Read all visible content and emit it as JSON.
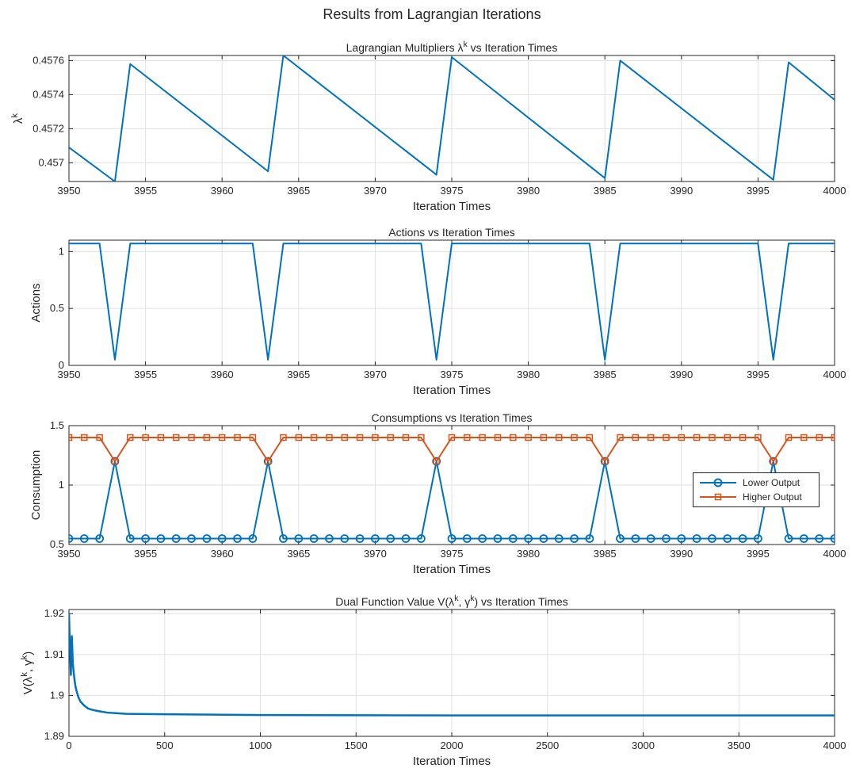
{
  "figure": {
    "title": "Results from Lagrangian Iterations"
  },
  "colors": {
    "series1": "#0072BD",
    "series2": "#D95319",
    "grid": "#E1E1E1",
    "axis": "#262626"
  },
  "chart_data": [
    {
      "type": "line",
      "title": "Lagrangian Multipliers λᵏ vs Iteration Times",
      "xlabel": "Iteration Times",
      "ylabel": "λᵏ",
      "xlim": [
        3950,
        4000
      ],
      "ylim": [
        0.45689,
        0.45763
      ],
      "xticks": [
        3950,
        3955,
        3960,
        3965,
        3970,
        3975,
        3980,
        3985,
        3990,
        3995,
        4000
      ],
      "xtick_labels": [
        "3950",
        "3955",
        "3960",
        "3965",
        "3970",
        "3975",
        "3980",
        "3985",
        "3990",
        "3995",
        "4000"
      ],
      "yticks": [
        0.457,
        0.4572,
        0.4574,
        0.4576
      ],
      "ytick_labels": [
        "0.457",
        "0.4572",
        "0.4574",
        "0.4576"
      ],
      "grid": true,
      "series": [
        {
          "x": [
            3950,
            3953,
            3954,
            3963,
            3964,
            3974,
            3975,
            3985,
            3986,
            3996,
            3997,
            4000
          ],
          "y": [
            0.45709,
            0.45689,
            0.45758,
            0.45695,
            0.45763,
            0.45693,
            0.45762,
            0.45691,
            0.4576,
            0.4569,
            0.45759,
            0.45737
          ]
        }
      ]
    },
    {
      "type": "line",
      "title": "Actions vs Iteration Times",
      "xlabel": "Iteration Times",
      "ylabel": "Actions",
      "xlim": [
        3950,
        4000
      ],
      "ylim": [
        0,
        1.1
      ],
      "xticks": [
        3950,
        3955,
        3960,
        3965,
        3970,
        3975,
        3980,
        3985,
        3990,
        3995,
        4000
      ],
      "xtick_labels": [
        "3950",
        "3955",
        "3960",
        "3965",
        "3970",
        "3975",
        "3980",
        "3985",
        "3990",
        "3995",
        "4000"
      ],
      "yticks": [
        0,
        0.5,
        1
      ],
      "ytick_labels": [
        "0",
        "0.5",
        "1"
      ],
      "grid": true,
      "series": [
        {
          "x": [
            3950,
            3952,
            3953,
            3954,
            3962,
            3963,
            3964,
            3973,
            3974,
            3975,
            3984,
            3985,
            3986,
            3995,
            3996,
            3997,
            4000
          ],
          "y": [
            1.07,
            1.07,
            0.05,
            1.07,
            1.07,
            0.05,
            1.07,
            1.07,
            0.05,
            1.07,
            1.07,
            0.05,
            1.07,
            1.07,
            0.05,
            1.07,
            1.07
          ]
        }
      ]
    },
    {
      "type": "line",
      "title": "Consumptions vs Iteration Times",
      "xlabel": "Iteration Times",
      "ylabel": "Consumption",
      "xlim": [
        3950,
        4000
      ],
      "ylim": [
        0.5,
        1.5
      ],
      "xticks": [
        3950,
        3955,
        3960,
        3965,
        3970,
        3975,
        3980,
        3985,
        3990,
        3995,
        4000
      ],
      "xtick_labels": [
        "3950",
        "3955",
        "3960",
        "3965",
        "3970",
        "3975",
        "3980",
        "3985",
        "3990",
        "3995",
        "4000"
      ],
      "yticks": [
        0.5,
        1,
        1.5
      ],
      "ytick_labels": [
        "0.5",
        "1",
        "1.5"
      ],
      "grid": true,
      "legend": "right",
      "x_start": 3950,
      "x_end": 4000,
      "dips": [
        3953,
        3963,
        3974,
        3985,
        3996
      ],
      "series": [
        {
          "name": "Lower Output",
          "marker": "circle",
          "base": 0.55,
          "dip_value": 1.2
        },
        {
          "name": "Higher Output",
          "marker": "square",
          "base": 1.4,
          "dip_value": 1.2
        }
      ]
    },
    {
      "type": "line",
      "title": "Dual Function Value V(λᵏ, γᵏ) vs Iteration Times",
      "xlabel": "Iteration Times",
      "ylabel": "V(λᵏ, γᵏ)",
      "xlim": [
        0,
        4000
      ],
      "ylim": [
        1.89,
        1.921
      ],
      "xticks": [
        0,
        500,
        1000,
        1500,
        2000,
        2500,
        3000,
        3500,
        4000
      ],
      "xtick_labels": [
        "0",
        "500",
        "1000",
        "1500",
        "2000",
        "2500",
        "3000",
        "3500",
        "4000"
      ],
      "yticks": [
        1.89,
        1.9,
        1.91,
        1.92
      ],
      "ytick_labels": [
        "1.89",
        "1.9",
        "1.91",
        "1.92"
      ],
      "grid": true,
      "series": [
        {
          "x": [
            0,
            5,
            10,
            15,
            20,
            25,
            30,
            35,
            40,
            50,
            60,
            80,
            100,
            120,
            150,
            200,
            300,
            500,
            1000,
            2000,
            3000,
            4000
          ],
          "y": [
            1.92,
            1.912,
            1.905,
            1.9145,
            1.908,
            1.9055,
            1.9035,
            1.902,
            1.901,
            1.8995,
            1.8985,
            1.8975,
            1.8968,
            1.8965,
            1.8962,
            1.8958,
            1.8955,
            1.8954,
            1.8952,
            1.8951,
            1.8951,
            1.8951
          ]
        }
      ]
    }
  ]
}
